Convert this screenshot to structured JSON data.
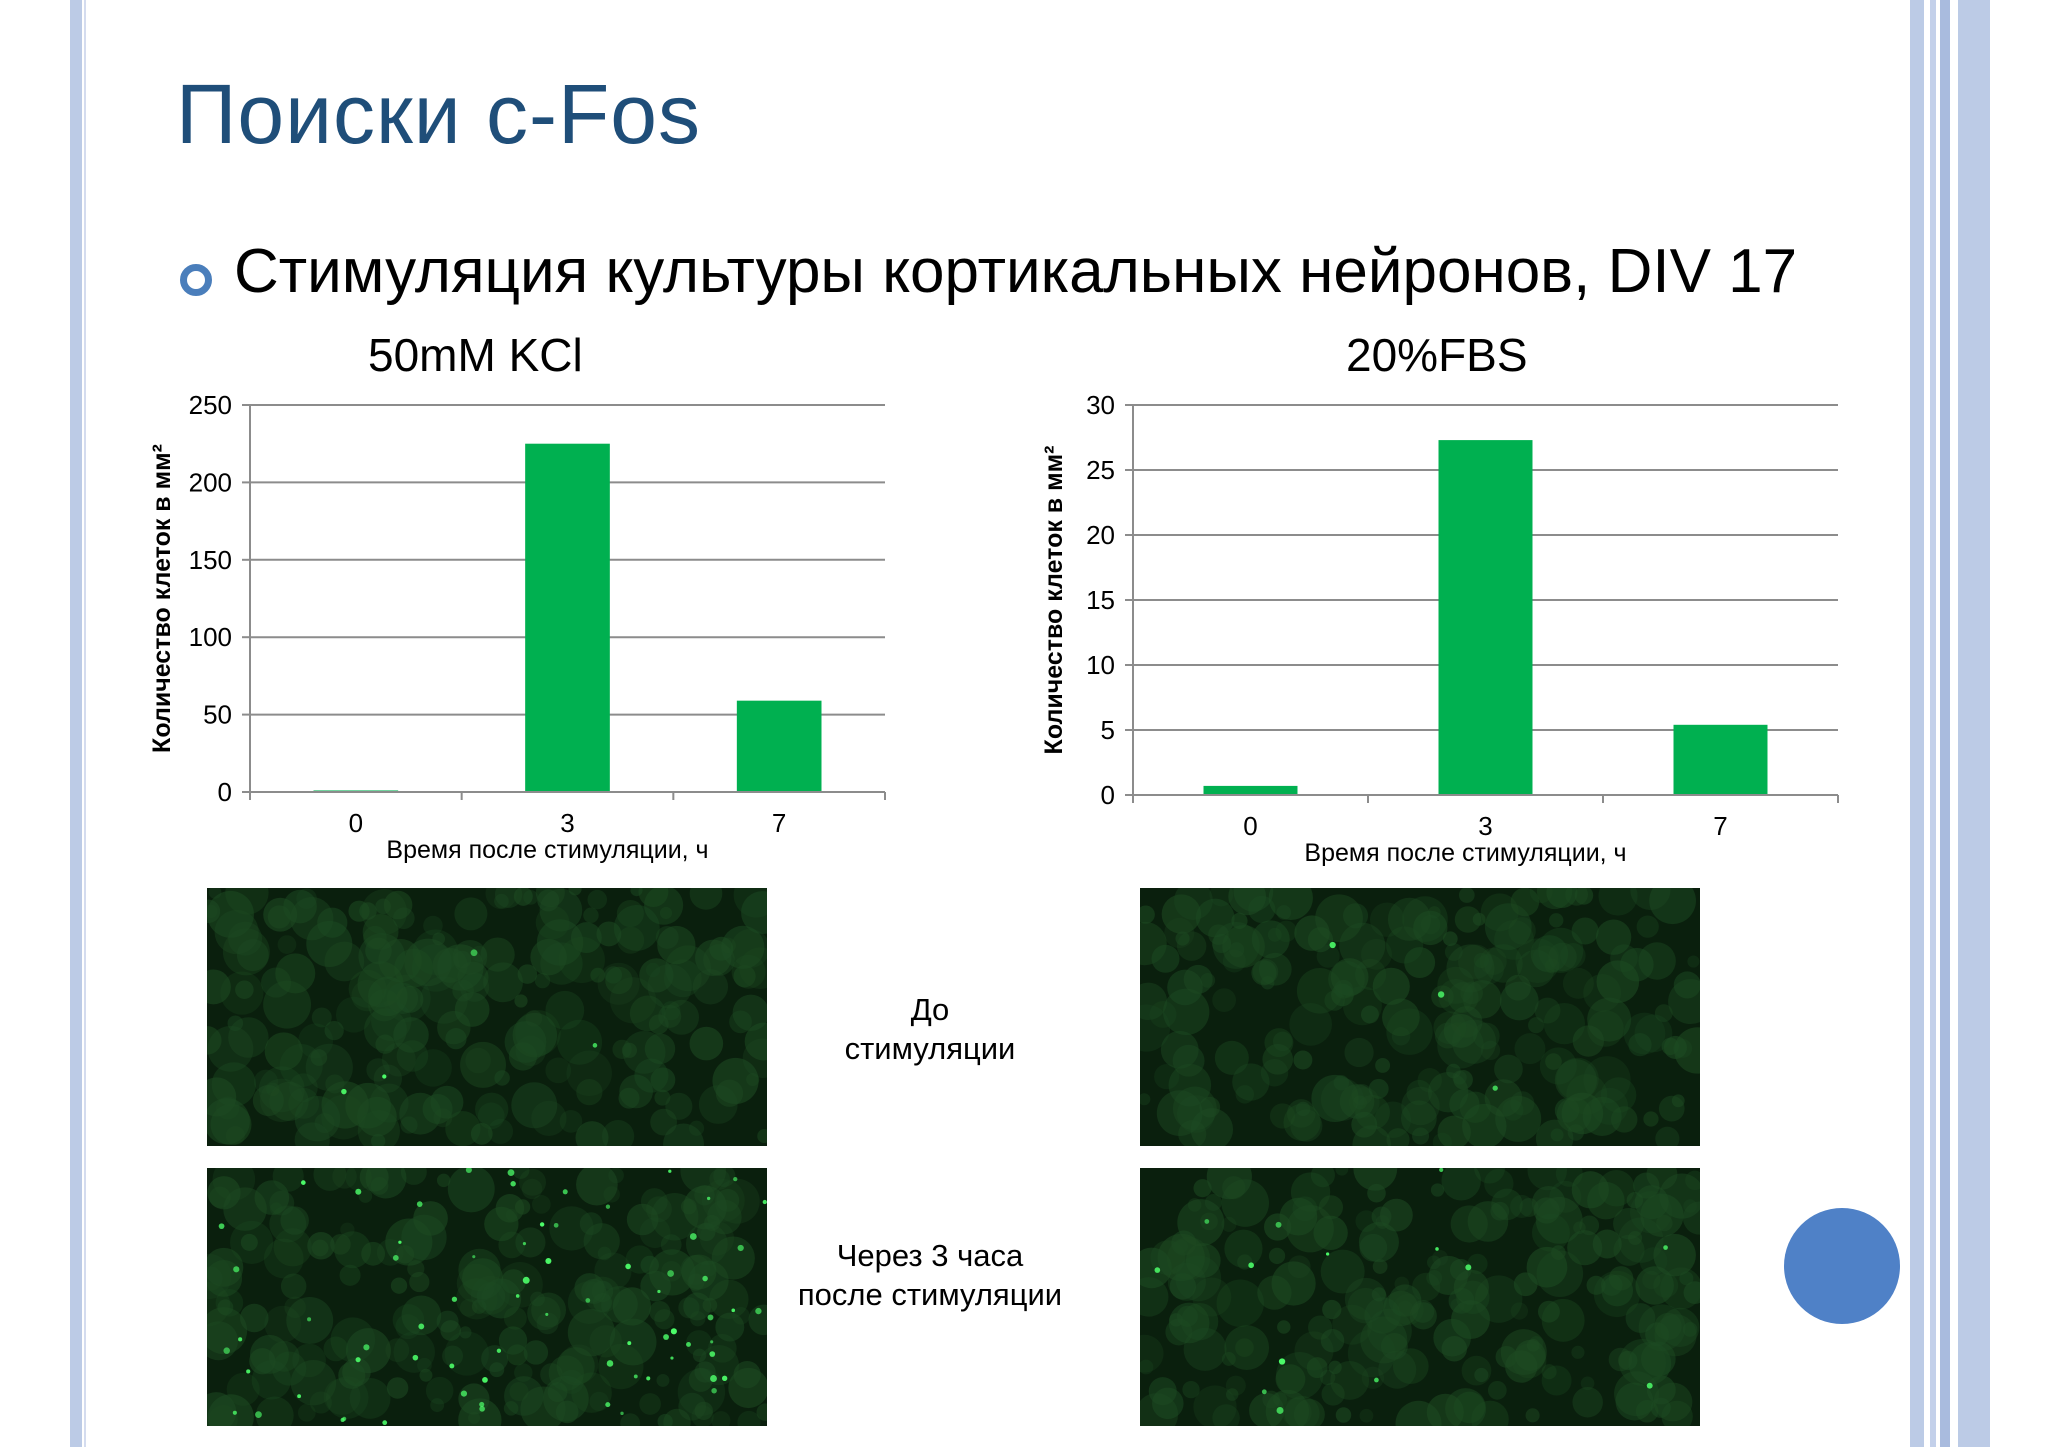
{
  "slide": {
    "title": "Поиски c-Fos",
    "bullet": "Стимуляция культуры кортикальных нейронов, DIV 17",
    "colors": {
      "bar": "#00b050",
      "title": "#1f4e79",
      "border": "#bccbe6",
      "accent": "#4f81c7"
    },
    "captions": {
      "before": [
        "До",
        "стимуляции"
      ],
      "after": [
        "Через 3 часа",
        "после стимуляции"
      ]
    },
    "bullet_icon": "hollow-circle-icon",
    "decoration_icon": "blue-circle-icon"
  },
  "chart_data": [
    {
      "type": "bar",
      "title": "50mM KCl",
      "categories": [
        "0",
        "3",
        "7"
      ],
      "series": [
        {
          "values": [
            1,
            225,
            59
          ]
        }
      ],
      "xlabel": "Время после стимуляции, ч",
      "ylabel": "Количество клеток в мм²",
      "ylim": [
        0,
        250
      ],
      "yticks": [
        0,
        50,
        100,
        150,
        200,
        250
      ],
      "grid": true
    },
    {
      "type": "bar",
      "title": "20%FBS",
      "categories": [
        "0",
        "3",
        "7"
      ],
      "series": [
        {
          "values": [
            0.7,
            27.3,
            5.4
          ]
        }
      ],
      "xlabel": "Время после стимуляции, ч",
      "ylabel": "Количество клеток в мм²",
      "ylim": [
        0,
        30
      ],
      "yticks": [
        0,
        5,
        10,
        15,
        20,
        25,
        30
      ],
      "grid": true
    }
  ]
}
